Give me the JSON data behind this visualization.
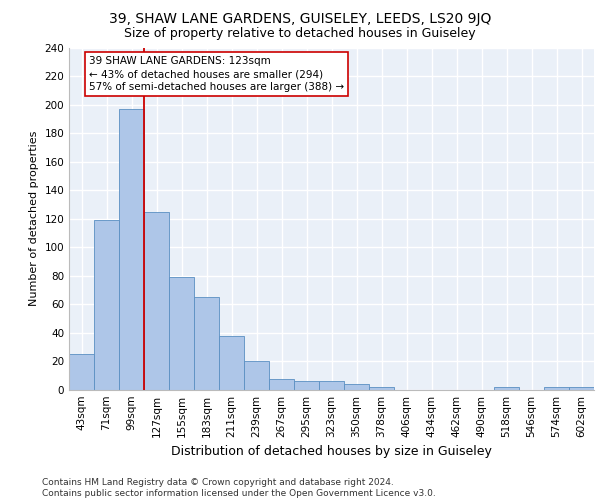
{
  "title1": "39, SHAW LANE GARDENS, GUISELEY, LEEDS, LS20 9JQ",
  "title2": "Size of property relative to detached houses in Guiseley",
  "xlabel": "Distribution of detached houses by size in Guiseley",
  "ylabel": "Number of detached properties",
  "bar_labels": [
    "43sqm",
    "71sqm",
    "99sqm",
    "127sqm",
    "155sqm",
    "183sqm",
    "211sqm",
    "239sqm",
    "267sqm",
    "295sqm",
    "323sqm",
    "350sqm",
    "378sqm",
    "406sqm",
    "434sqm",
    "462sqm",
    "490sqm",
    "518sqm",
    "546sqm",
    "574sqm",
    "602sqm"
  ],
  "bar_values": [
    25,
    119,
    197,
    125,
    79,
    65,
    38,
    20,
    8,
    6,
    6,
    4,
    2,
    0,
    0,
    0,
    0,
    2,
    0,
    2,
    2
  ],
  "bar_color": "#aec6e8",
  "bar_edge_color": "#5a8fc2",
  "vline_color": "#cc0000",
  "annotation_text": "39 SHAW LANE GARDENS: 123sqm\n← 43% of detached houses are smaller (294)\n57% of semi-detached houses are larger (388) →",
  "annotation_box_color": "#ffffff",
  "annotation_box_edge": "#cc0000",
  "ylim": [
    0,
    240
  ],
  "yticks": [
    0,
    20,
    40,
    60,
    80,
    100,
    120,
    140,
    160,
    180,
    200,
    220,
    240
  ],
  "background_color": "#eaf0f8",
  "grid_color": "#ffffff",
  "footer": "Contains HM Land Registry data © Crown copyright and database right 2024.\nContains public sector information licensed under the Open Government Licence v3.0.",
  "title1_fontsize": 10,
  "title2_fontsize": 9,
  "xlabel_fontsize": 9,
  "ylabel_fontsize": 8,
  "tick_fontsize": 7.5,
  "annotation_fontsize": 7.5,
  "footer_fontsize": 6.5
}
